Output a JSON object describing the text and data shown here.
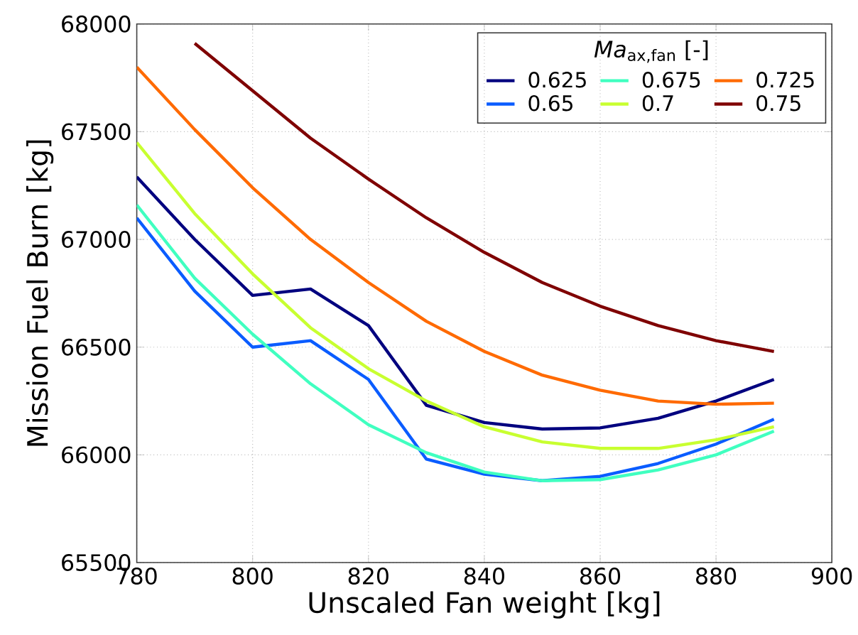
{
  "chart_data": {
    "type": "line",
    "xlabel": "Unscaled Fan weight [kg]",
    "ylabel": "Mission Fuel Burn [kg]",
    "legend_title": "*Ma*$_{ax,fan}$ [-]",
    "x": [
      780,
      790,
      800,
      810,
      820,
      830,
      840,
      850,
      860,
      870,
      880,
      890
    ],
    "series": [
      {
        "name": "0.625",
        "color": "#00007f",
        "values": [
          67290,
          67000,
          66740,
          66770,
          66600,
          66230,
          66150,
          66120,
          66125,
          66170,
          66250,
          66350
        ]
      },
      {
        "name": "0.65",
        "color": "#0a5cff",
        "values": [
          67100,
          66760,
          66500,
          66530,
          66350,
          65980,
          65910,
          65880,
          65900,
          65960,
          66050,
          66165
        ]
      },
      {
        "name": "0.675",
        "color": "#40ffc0",
        "values": [
          67160,
          66820,
          66560,
          66330,
          66140,
          66010,
          65920,
          65880,
          65885,
          65930,
          66000,
          66110
        ]
      },
      {
        "name": "0.7",
        "color": "#c8ff30",
        "values": [
          67450,
          67120,
          66840,
          66590,
          66400,
          66250,
          66130,
          66060,
          66030,
          66030,
          66070,
          66130
        ]
      },
      {
        "name": "0.725",
        "color": "#ff6a00",
        "values": [
          67800,
          67510,
          67240,
          67000,
          66800,
          66620,
          66480,
          66370,
          66300,
          66250,
          66235,
          66240
        ]
      },
      {
        "name": "0.75",
        "color": "#7f0000",
        "values": [
          null,
          67910,
          67690,
          67470,
          67280,
          67100,
          66940,
          66800,
          66690,
          66600,
          66530,
          66480
        ]
      }
    ],
    "xlim": [
      780,
      900
    ],
    "xticks": [
      780,
      800,
      820,
      840,
      860,
      880,
      900
    ],
    "ylim": [
      65500,
      68000
    ],
    "yticks": [
      65500,
      66000,
      66500,
      67000,
      67500,
      68000
    ],
    "grid": true,
    "legend": "top right",
    "line_style": "solid",
    "marker": "none"
  }
}
